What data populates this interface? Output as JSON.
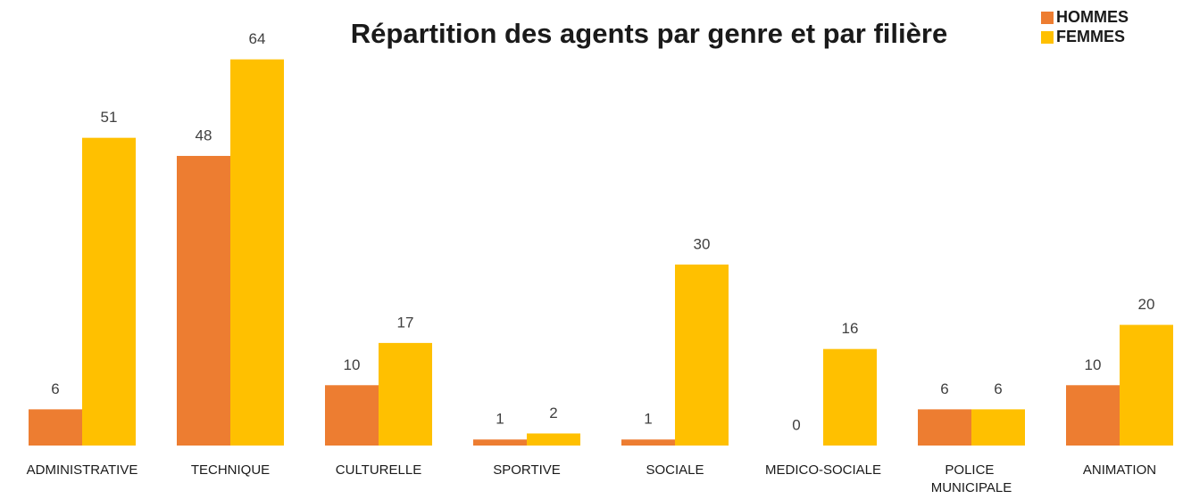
{
  "chart_data": {
    "type": "bar",
    "title": "Répartition des agents par genre et par filière",
    "categories": [
      "ADMINISTRATIVE",
      "TECHNIQUE",
      "CULTURELLE",
      "SPORTIVE",
      "SOCIALE",
      "MEDICO-SOCIALE",
      "POLICE MUNICIPALE",
      "ANIMATION"
    ],
    "series": [
      {
        "name": "HOMMES",
        "color": "#ed7d31",
        "values": [
          6,
          48,
          10,
          1,
          1,
          0,
          6,
          10
        ]
      },
      {
        "name": "FEMMES",
        "color": "#ffc000",
        "values": [
          51,
          64,
          17,
          2,
          30,
          16,
          6,
          20
        ]
      }
    ],
    "ylim": [
      0,
      70
    ],
    "legend": "top-right"
  }
}
